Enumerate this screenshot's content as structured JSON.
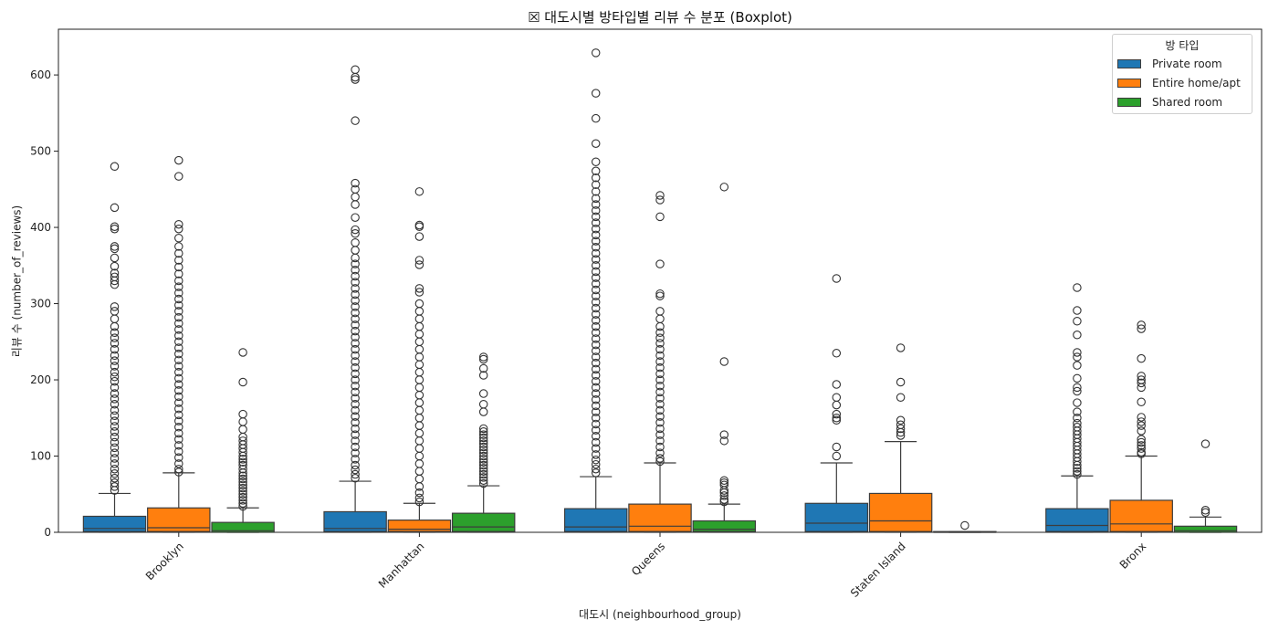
{
  "chart_data": {
    "type": "boxplot",
    "title": "☒ 대도시별 방타입별 리뷰 수 분포 (Boxplot)",
    "xlabel": "대도시 (neighbourhood_group)",
    "ylabel": "리뷰 수 (number_of_reviews)",
    "ylim": [
      0,
      660
    ],
    "yticks": [
      0,
      100,
      200,
      300,
      400,
      500,
      600
    ],
    "grid": false,
    "legend": {
      "title": "방 타입",
      "placement": "top-right"
    },
    "categories": [
      "Brooklyn",
      "Manhattan",
      "Queens",
      "Staten Island",
      "Bronx"
    ],
    "series": [
      {
        "name": "Private room",
        "color": "#1f77b4",
        "boxes": [
          {
            "q1": 1,
            "median": 5,
            "q3": 21,
            "whisker_low": 0,
            "whisker_high": 51,
            "outliers": [
              480,
              426,
              401,
              398,
              375,
              372,
              360,
              349,
              340,
              335,
              330,
              325,
              296,
              290,
              280,
              270,
              262,
              255,
              248,
              240,
              232,
              225,
              218,
              210,
              204,
              198,
              190,
              182,
              175,
              168,
              160,
              153,
              146,
              139,
              132,
              125,
              118,
              111,
              104,
              97,
              90,
              83,
              77,
              71,
              65,
              60,
              55
            ]
          },
          {
            "q1": 1,
            "median": 5,
            "q3": 27,
            "whisker_low": 0,
            "whisker_high": 67,
            "outliers": [
              607,
              597,
              594,
              540,
              458,
              450,
              440,
              430,
              413,
              397,
              392,
              380,
              370,
              360,
              352,
              344,
              336,
              328,
              320,
              312,
              304,
              296,
              288,
              280,
              272,
              264,
              256,
              248,
              240,
              232,
              224,
              216,
              208,
              200,
              192,
              184,
              176,
              168,
              160,
              152,
              144,
              136,
              128,
              120,
              112,
              104,
              96,
              88,
              82,
              76,
              71
            ]
          },
          {
            "q1": 1,
            "median": 7,
            "q3": 31,
            "whisker_low": 0,
            "whisker_high": 73,
            "outliers": [
              629,
              576,
              543,
              510,
              486,
              474,
              465,
              456,
              447,
              438,
              430,
              422,
              414,
              406,
              398,
              390,
              382,
              374,
              366,
              358,
              350,
              342,
              334,
              326,
              318,
              310,
              302,
              294,
              286,
              278,
              270,
              262,
              254,
              246,
              238,
              230,
              222,
              214,
              206,
              198,
              190,
              182,
              174,
              166,
              158,
              150,
              142,
              134,
              126,
              118,
              110,
              102,
              95,
              89,
              83,
              78
            ]
          },
          {
            "q1": 1,
            "median": 12,
            "q3": 38,
            "whisker_low": 0,
            "whisker_high": 91,
            "outliers": [
              333,
              235,
              194,
              177,
              167,
              155,
              150,
              147,
              112,
              100
            ]
          },
          {
            "q1": 1,
            "median": 9,
            "q3": 31,
            "whisker_low": 0,
            "whisker_high": 74,
            "outliers": [
              321,
              291,
              277,
              259,
              236,
              230,
              219,
              202,
              190,
              185,
              170,
              158,
              150,
              143,
              138,
              133,
              128,
              123,
              118,
              113,
              108,
              103,
              98,
              93,
              88,
              84,
              80,
              76
            ]
          }
        ]
      },
      {
        "name": "Entire home/apt",
        "color": "#ff7f0e",
        "boxes": [
          {
            "q1": 1,
            "median": 6,
            "q3": 32,
            "whisker_low": 0,
            "whisker_high": 78,
            "outliers": [
              488,
              467,
              404,
              398,
              386,
              375,
              366,
              357,
              348,
              339,
              330,
              322,
              314,
              306,
              298,
              290,
              282,
              274,
              266,
              258,
              250,
              242,
              234,
              226,
              218,
              210,
              202,
              194,
              186,
              178,
              170,
              162,
              154,
              146,
              138,
              130,
              122,
              114,
              106,
              98,
              90,
              83,
              79
            ]
          },
          {
            "q1": 1,
            "median": 4,
            "q3": 16,
            "whisker_low": 0,
            "whisker_high": 38,
            "outliers": [
              447,
              403,
              401,
              388,
              357,
              351,
              320,
              315,
              300,
              290,
              280,
              270,
              260,
              250,
              240,
              230,
              220,
              210,
              200,
              190,
              180,
              170,
              160,
              150,
              140,
              130,
              120,
              110,
              100,
              90,
              80,
              70,
              60,
              52,
              45,
              40
            ]
          },
          {
            "q1": 1,
            "median": 8,
            "q3": 37,
            "whisker_low": 0,
            "whisker_high": 91,
            "outliers": [
              442,
              436,
              414,
              352,
              313,
              310,
              290,
              280,
              270,
              262,
              255,
              248,
              240,
              232,
              224,
              216,
              208,
              200,
              192,
              184,
              176,
              168,
              160,
              152,
              144,
              136,
              128,
              120,
              112,
              104,
              97,
              93
            ]
          },
          {
            "q1": 1,
            "median": 15,
            "q3": 51,
            "whisker_low": 0,
            "whisker_high": 119,
            "outliers": [
              242,
              197,
              177,
              147,
              141,
              136,
              131,
              127
            ]
          },
          {
            "q1": 1,
            "median": 11,
            "q3": 42,
            "whisker_low": 0,
            "whisker_high": 100,
            "outliers": [
              272,
              267,
              228,
              205,
              200,
              196,
              190,
              171,
              151,
              145,
              140,
              133,
              122,
              118,
              114,
              110,
              105,
              103
            ]
          }
        ]
      },
      {
        "name": "Shared room",
        "color": "#2ca02c",
        "boxes": [
          {
            "q1": 0,
            "median": 2,
            "q3": 13,
            "whisker_low": 0,
            "whisker_high": 32,
            "outliers": [
              236,
              197,
              155,
              145,
              135,
              125,
              120,
              115,
              110,
              105,
              100,
              96,
              92,
              88,
              83,
              78,
              74,
              70,
              66,
              62,
              58,
              54,
              50,
              46,
              42,
              38,
              34
            ]
          },
          {
            "q1": 1,
            "median": 7,
            "q3": 25,
            "whisker_low": 0,
            "whisker_high": 61,
            "outliers": [
              230,
              227,
              215,
              206,
              182,
              168,
              158,
              136,
              132,
              128,
              124,
              120,
              116,
              112,
              108,
              104,
              100,
              96,
              92,
              88,
              84,
              80,
              76,
              72,
              68,
              64
            ]
          },
          {
            "q1": 1,
            "median": 4,
            "q3": 15,
            "whisker_low": 0,
            "whisker_high": 37,
            "outliers": [
              453,
              224,
              128,
              120,
              68,
              65,
              62,
              55,
              52,
              48,
              43,
              40
            ]
          },
          {
            "q1": 0,
            "median": 0,
            "q3": 1,
            "whisker_low": 0,
            "whisker_high": 1,
            "outliers": [
              9
            ]
          },
          {
            "q1": 0,
            "median": 2,
            "q3": 8,
            "whisker_low": 0,
            "whisker_high": 20,
            "outliers": [
              116,
              29,
              26
            ]
          }
        ]
      }
    ]
  }
}
